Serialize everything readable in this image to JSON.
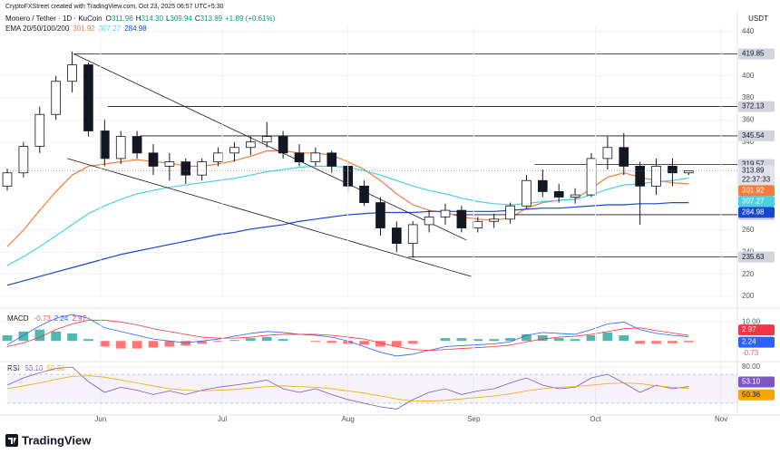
{
  "brand": "TradingView",
  "chart_data": [
    {
      "type": "candlestick",
      "subtitle": "CryptoFXStreet created with TradingView.com, Oct 23, 2025 06:57 UTC+5:30",
      "title": "Monero / Tether · 1D · KuCoin",
      "ohlc_legend": [
        "O",
        "311.96",
        "H",
        "314.30",
        "L",
        "309.94",
        "C",
        "313.89",
        "+1.89 (+0.61%)"
      ],
      "ema_legend": "EMA 20/50/100/200",
      "y_label": "USDT",
      "countdown": "22:37:33",
      "up_color": "#ffffff",
      "down_color": "#131722",
      "xlim": [
        0,
        45
      ],
      "ylim": [
        200,
        440
      ],
      "yticks": [
        200,
        220,
        240,
        260,
        340,
        360,
        380,
        400,
        440
      ],
      "grid": true,
      "open": [
        300,
        312,
        336,
        365,
        395,
        410,
        350,
        325,
        345,
        330,
        318,
        322,
        310,
        322,
        330,
        335,
        340,
        345,
        330,
        322,
        330,
        318,
        300,
        285,
        262,
        248,
        265,
        272,
        278,
        262,
        268,
        270,
        282,
        305,
        295,
        290,
        292,
        325,
        335,
        318,
        300,
        318,
        311.96
      ],
      "high": [
        316,
        340,
        372,
        400,
        422,
        412,
        360,
        350,
        350,
        338,
        330,
        325,
        325,
        335,
        340,
        345,
        358,
        350,
        338,
        335,
        332,
        322,
        305,
        290,
        268,
        268,
        278,
        284,
        282,
        272,
        275,
        285,
        310,
        315,
        302,
        298,
        330,
        345,
        348,
        322,
        325,
        325,
        314.3
      ],
      "low": [
        296,
        308,
        330,
        360,
        385,
        345,
        318,
        320,
        325,
        310,
        305,
        302,
        305,
        318,
        322,
        328,
        335,
        325,
        318,
        318,
        312,
        295,
        282,
        255,
        240,
        235,
        258,
        265,
        258,
        258,
        262,
        266,
        280,
        290,
        285,
        284,
        290,
        315,
        310,
        265,
        292,
        300,
        309.94
      ],
      "close": [
        312,
        336,
        365,
        395,
        410,
        350,
        325,
        345,
        330,
        318,
        322,
        310,
        322,
        330,
        335,
        340,
        345,
        330,
        322,
        330,
        318,
        300,
        285,
        262,
        248,
        265,
        272,
        278,
        262,
        268,
        270,
        282,
        305,
        295,
        290,
        292,
        325,
        335,
        318,
        300,
        318,
        312,
        313.89
      ],
      "series": [
        {
          "color": "#f57c3a",
          "values": [
            245,
            260,
            278,
            295,
            310,
            318,
            320,
            322,
            324,
            322,
            321,
            318,
            318,
            320,
            323,
            327,
            332,
            332,
            330,
            330,
            328,
            322,
            315,
            305,
            293,
            283,
            278,
            276,
            272,
            270,
            269,
            271,
            280,
            285,
            287,
            288,
            298,
            308,
            312,
            308,
            305,
            303,
            301.92
          ]
        },
        {
          "color": "#4dd0e1",
          "values": [
            228,
            236,
            245,
            255,
            265,
            275,
            282,
            288,
            293,
            296,
            299,
            301,
            303,
            305,
            307,
            310,
            313,
            315,
            317,
            318,
            318,
            317,
            314,
            310,
            305,
            300,
            296,
            293,
            289,
            286,
            284,
            283,
            284,
            286,
            287,
            288,
            292,
            297,
            301,
            302,
            304,
            305,
            307.27
          ]
        },
        {
          "color": "#1848cc",
          "values": [
            210,
            214,
            218,
            222,
            226,
            230,
            234,
            238,
            241,
            244,
            247,
            250,
            253,
            256,
            258,
            261,
            263,
            265,
            268,
            270,
            272,
            274,
            275,
            276,
            276,
            276,
            277,
            277,
            277,
            277,
            277,
            278,
            279,
            280,
            280,
            281,
            282,
            283,
            283,
            284,
            284,
            285,
            284.98
          ]
        }
      ],
      "levels": [
        {
          "x": 4.1,
          "value": 419.85
        },
        {
          "x": 6.2,
          "value": 372.13
        },
        {
          "x": 8.2,
          "value": 345.54
        },
        {
          "x": 32.5,
          "value": 319.57
        },
        {
          "x": 27.5,
          "value": 274.03
        },
        {
          "x": 24.7,
          "value": 235.63
        }
      ],
      "trendlines": [
        {
          "x": [
            4.1,
            28.3
          ],
          "y": [
            419.85,
            251
          ]
        },
        {
          "x": [
            3.7,
            28.6
          ],
          "y": [
            325,
            218
          ]
        }
      ]
    },
    {
      "type": "macd",
      "title": "MACD",
      "xlim": [
        0,
        45
      ],
      "ylim": [
        -9,
        15
      ],
      "yticks": [
        {
          "value": 10,
          "label": "10.00"
        }
      ],
      "up_color": "#26a69a",
      "down_color": "#ff5252",
      "histogram": [
        3,
        5,
        6,
        5,
        4,
        1,
        -3,
        -4,
        -4,
        -3.5,
        -3,
        -2.5,
        -1.5,
        -0.5,
        0.5,
        1.5,
        2,
        1,
        0,
        -0.5,
        -1,
        -1.5,
        -2,
        -3,
        -3,
        -1.5,
        0,
        1.5,
        1.5,
        1,
        1,
        1.5,
        3.5,
        3,
        1.5,
        1,
        3,
        4.5,
        3,
        -1.5,
        -1.5,
        -1.2,
        -0.73
      ],
      "series": [
        {
          "color": "#2962ff",
          "values": [
            -2,
            3,
            8,
            12,
            14,
            12,
            7,
            5,
            3,
            1,
            0,
            -1,
            0,
            1,
            2.5,
            4,
            5,
            4.5,
            3.5,
            3,
            2,
            0,
            -3,
            -6,
            -8,
            -7,
            -5,
            -3,
            -2.5,
            -2,
            -1.5,
            -0.5,
            3,
            4.5,
            4,
            3.5,
            6,
            9,
            10,
            6,
            4,
            3,
            2.24
          ]
        },
        {
          "color": "#f23645",
          "values": [
            -3,
            -1,
            2,
            6,
            9,
            11,
            11,
            10,
            8.5,
            6.5,
            5,
            3.5,
            2,
            1.5,
            1.5,
            2,
            3,
            3.5,
            3.5,
            3.5,
            3,
            2,
            1,
            -1,
            -3,
            -4.5,
            -5,
            -4.5,
            -4,
            -3.5,
            -3,
            -2.2,
            -0.5,
            1,
            2,
            2.5,
            3.5,
            5,
            6.5,
            7,
            5.5,
            4.2,
            2.97
          ]
        }
      ]
    },
    {
      "type": "line",
      "title": "RSI",
      "xlim": [
        0,
        45
      ],
      "ylim": [
        17.5,
        82.5
      ],
      "yticks": [
        {
          "value": 80,
          "label": "80.00"
        }
      ],
      "band": [
        30,
        70
      ],
      "xticks": [
        {
          "value": 5.75,
          "label": "Jun"
        },
        {
          "value": 13.25,
          "label": "Jul"
        },
        {
          "value": 21,
          "label": "Aug"
        },
        {
          "value": 28.75,
          "label": "Sep"
        },
        {
          "value": 36.25,
          "label": "Oct"
        },
        {
          "value": 44,
          "label": "Nov"
        }
      ],
      "series": [
        {
          "color": "#7e57c2",
          "values": [
            55,
            65,
            72,
            78,
            80,
            60,
            45,
            52,
            48,
            42,
            47,
            42,
            48,
            52,
            55,
            58,
            62,
            50,
            45,
            50,
            42,
            35,
            30,
            25,
            22,
            35,
            45,
            50,
            42,
            47,
            50,
            58,
            65,
            55,
            50,
            52,
            65,
            70,
            58,
            45,
            55,
            50,
            53.1
          ]
        },
        {
          "color": "#f7a600",
          "values": [
            50,
            54,
            58,
            63,
            67,
            68,
            66,
            62,
            58,
            54,
            50,
            48,
            47,
            48,
            49,
            51,
            53,
            54,
            53,
            52,
            50,
            47,
            44,
            40,
            36,
            33,
            33,
            34,
            36,
            38,
            40,
            43,
            47,
            50,
            52,
            53,
            55,
            57,
            58,
            57,
            54,
            52,
            50.36
          ]
        }
      ],
      "markers": [
        {
          "value": 53.1,
          "label": "53.10"
        }
      ]
    }
  ]
}
